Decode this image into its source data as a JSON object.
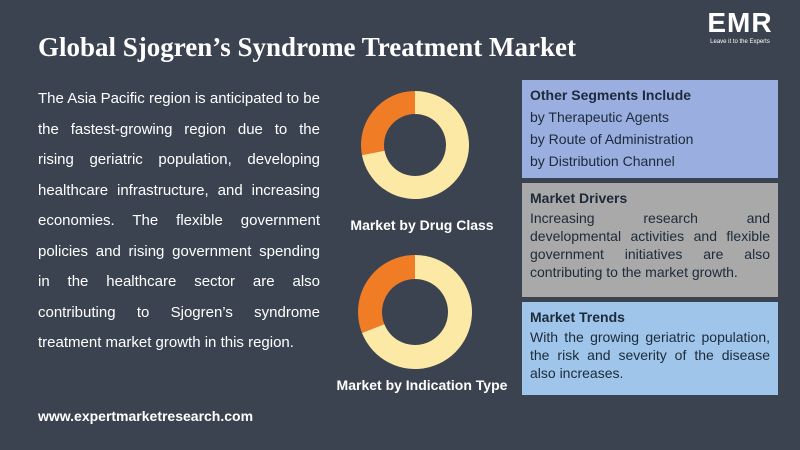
{
  "header": {
    "title": "Global Sjogren’s Syndrome Treatment Market",
    "logo": "EMR",
    "tagline": "Leave it to the Experts"
  },
  "description": "The Asia Pacific region is anticipated to be the fastest-growing region due to the rising geriatric population, developing healthcare infrastructure, and increasing economies. The flexible government policies and rising government spending in the healthcare sector are also contributing to Sjogren’s syndrome treatment market growth in this region.",
  "website": "www.expertmarketresearch.com",
  "chart_data": [
    {
      "type": "donut",
      "title": "Market by Drug Class",
      "values": [
        28,
        72
      ],
      "colors": [
        "#f07d26",
        "#fde9a6"
      ]
    },
    {
      "type": "donut",
      "title": "Market by Indication Type",
      "values": [
        31,
        69
      ],
      "colors": [
        "#f07d26",
        "#fde9a6"
      ]
    }
  ],
  "panels": [
    {
      "title": "Other Segments Include",
      "items": [
        "by Therapeutic Agents",
        "by Route of Administration",
        "by Distribution Channel"
      ]
    },
    {
      "title": "Market Drivers",
      "text": "Increasing research and developmental activities and flexible government initiatives are also contributing to the market growth."
    },
    {
      "title": "Market Trends",
      "text": "With the growing geriatric population, the risk and severity of the disease also increases."
    }
  ]
}
